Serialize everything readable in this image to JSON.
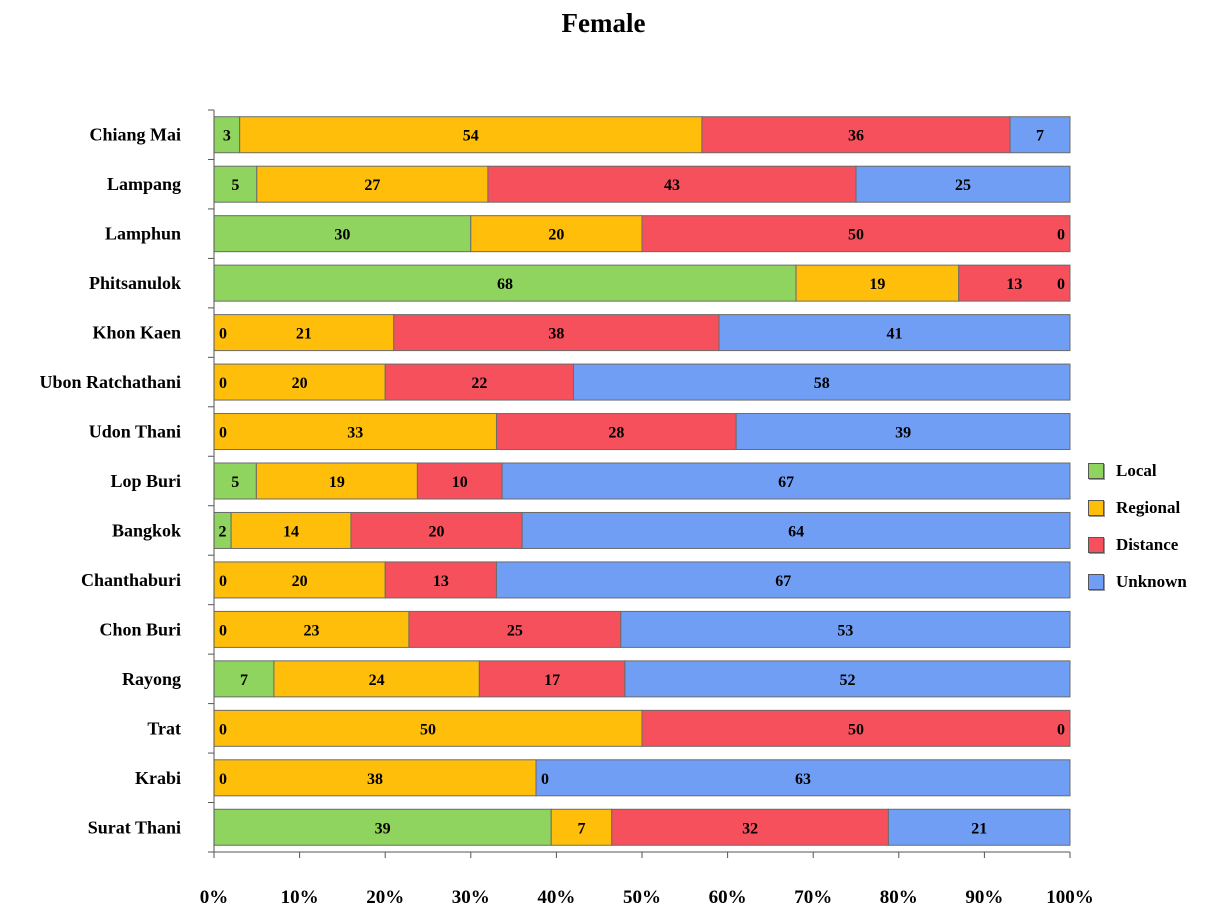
{
  "chart_data": {
    "type": "bar",
    "orientation": "horizontal",
    "stacked": "percent",
    "title": "Female",
    "categories": [
      "Chiang Mai",
      "Lampang",
      "Lamphun",
      "Phitsanulok",
      "Khon Kaen",
      "Ubon Ratchathani",
      "Udon Thani",
      "Lop Buri",
      "Bangkok",
      "Chanthaburi",
      "Chon Buri",
      "Rayong",
      "Trat",
      "Krabi",
      "Surat Thani"
    ],
    "series": [
      {
        "name": "Local",
        "color": "#8fd45e",
        "values": [
          3,
          5,
          30,
          68,
          0,
          0,
          0,
          5,
          2,
          0,
          0,
          7,
          0,
          0,
          39
        ]
      },
      {
        "name": "Regional",
        "color": "#ffbe0a",
        "values": [
          54,
          27,
          20,
          19,
          21,
          20,
          33,
          19,
          14,
          20,
          23,
          24,
          50,
          38,
          7
        ]
      },
      {
        "name": "Distance",
        "color": "#f5505c",
        "values": [
          36,
          43,
          50,
          13,
          38,
          22,
          28,
          10,
          20,
          13,
          25,
          17,
          50,
          0,
          32
        ]
      },
      {
        "name": "Unknown",
        "color": "#719ef5",
        "values": [
          7,
          25,
          0,
          0,
          41,
          58,
          39,
          67,
          64,
          67,
          53,
          52,
          0,
          63,
          21
        ]
      }
    ],
    "xticks": [
      "0%",
      "10%",
      "20%",
      "30%",
      "40%",
      "50%",
      "60%",
      "70%",
      "80%",
      "90%",
      "100%"
    ],
    "xlim": [
      0,
      100
    ],
    "grid": false,
    "legend": "right"
  }
}
